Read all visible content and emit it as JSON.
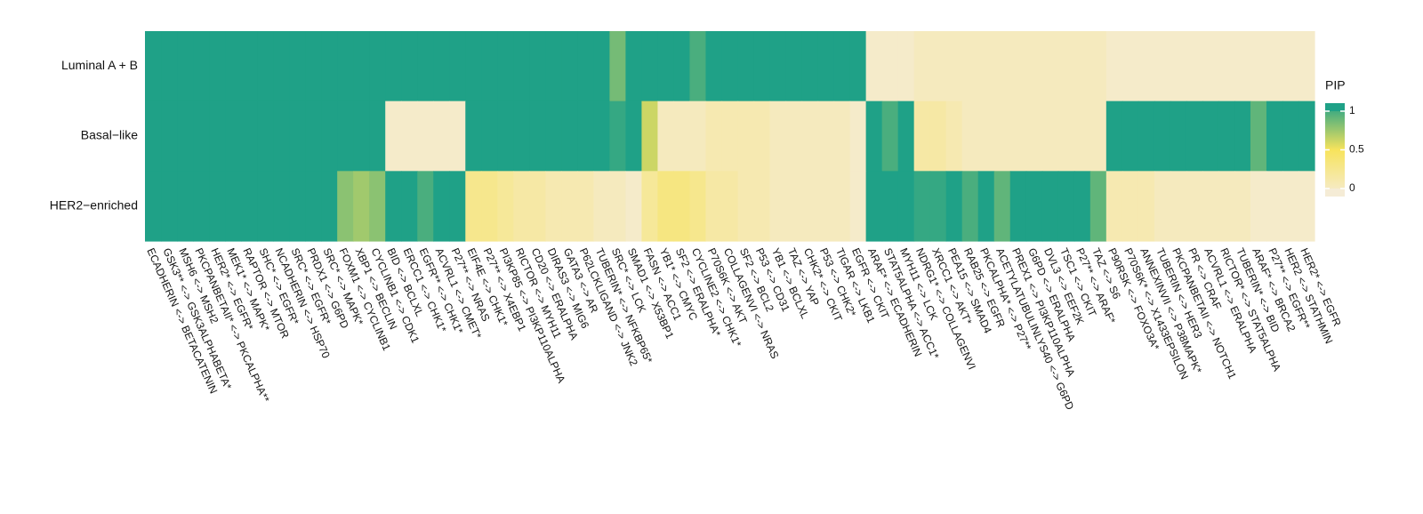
{
  "chart_data": {
    "type": "heatmap",
    "rows": [
      "Luminal A + B",
      "Basal−like",
      "HER2−enriched"
    ],
    "columns": [
      "ECADHERIN <-> BETACATENIN",
      "GSK3** <-> GSK3ALPHABETA*",
      "MSH6 <-> MSH2",
      "PKCPANBETAII* <-> PKCALPHA**",
      "HER2* <-> EGFR*",
      "MEK1* <-> MAPK*",
      "RAPTOR <-> MTOR",
      "SHC* <-> EGFR*",
      "NCADHERIN <-> HSP70",
      "SRC* <-> EGFR*",
      "PRDX1 <-> G6PD",
      "SRC* <-> MAPK*",
      "FOXM1 <-> CYCLINB1",
      "XBP1 <-> BECLIN",
      "CYCLINB1 <-> CDK1",
      "BID <-> BCLXL",
      "ERCC1 <-> CHK1*",
      "EGFR** <-> CHK1*",
      "ACVRL1 <-> CMET*",
      "P27** <-> NRAS",
      "EIF4E <-> CHK1*",
      "P27** <-> X4EBP1",
      "PI3KP85 <-> PI3KP110ALPHA",
      "RICTOR <-> MYH11",
      "CD20 <-> ERALPHA",
      "DIRAS3 <-> MIG6",
      "GATA3 <-> AR",
      "P62LCKLIGAND <-> JNK2",
      "TUBERIN* <-> NFKBP65*",
      "SRC* <-> LCK",
      "SMAD1 <-> X53BP1",
      "FASN <-> ACC1",
      "YB1* <-> CMYC",
      "SF2 <-> ERALPHA*",
      "CYCLINE2 <-> CHK1*",
      "P70S6K <-> AKT",
      "COLLAGENVI <-> NRAS",
      "SF2 <-> BCL2",
      "P53 <-> CD31",
      "YB1 <-> BCLXL",
      "TAZ <-> YAP",
      "CHK2* <-> CKIT",
      "P53 <-> CHK2*",
      "TIGAR <-> LKB1",
      "EGFR <-> CKIT",
      "ARAF* <-> ECADHERIN",
      "STAT5ALPHA <-> ACC1*",
      "MYH11 <-> LCK",
      "NDRG1* <-> COLLAGENVI",
      "XRCC1 <-> AKT*",
      "PEA15 <-> SMAD4",
      "RAB25 <-> EGFR",
      "PKCALPHA* <-> P27**",
      "ACETYLATUBULINLYS40 <-> G6PD",
      "PREX1 <-> PI3KP110ALPHA",
      "G6PD <-> ERALPHA",
      "DVL3 <-> EEF2K",
      "TSC1 <-> CKIT",
      "P27** <-> ARAF*",
      "TAZ <-> S6",
      "P90RSK <-> FOXO3A*",
      "P70S6K* <-> X1433EPSILON",
      "ANNEXINVII <-> P38MAPK*",
      "TUBERIN <-> HER3",
      "PKCPANBETAII <-> NOTCH1",
      "PR <-> CRAF",
      "ACVRL1 <-> ERALPHA",
      "RICTOR* <-> STAT5ALPHA",
      "TUBERIN* <-> BID",
      "ARAF* <-> BRCA2",
      "P27** <-> EGFR**",
      "HER2 <-> STATHMIN",
      "HER2* <-> EGFR"
    ],
    "values": [
      [
        1,
        1,
        1,
        1,
        1,
        1,
        1,
        1,
        1,
        1,
        1,
        1,
        1,
        1,
        1,
        1,
        1,
        1,
        1,
        1,
        1,
        1,
        1,
        1,
        1,
        1,
        1,
        1,
        1,
        0.8,
        1,
        1,
        1,
        1,
        0.9,
        1,
        1,
        1,
        1,
        1,
        1,
        1,
        1,
        1,
        1,
        0.05,
        0.05,
        0.05,
        0.1,
        0.1,
        0.1,
        0.1,
        0.1,
        0.1,
        0.1,
        0.1,
        0.1,
        0.1,
        0.1,
        0.1,
        0.05,
        0.05,
        0.05,
        0.05,
        0.05,
        0.05,
        0.05,
        0.05,
        0.05,
        0.05,
        0.05,
        0.05,
        0.05
      ],
      [
        1,
        1,
        1,
        1,
        1,
        1,
        1,
        1,
        1,
        1,
        1,
        1,
        1,
        1,
        1,
        0.05,
        0.05,
        0.05,
        0.05,
        0.05,
        1,
        1,
        1,
        1,
        1,
        1,
        1,
        1,
        1,
        0.95,
        1,
        0.6,
        0.1,
        0.1,
        0.1,
        0.15,
        0.15,
        0.15,
        0.15,
        0.1,
        0.1,
        0.1,
        0.1,
        0.1,
        0.05,
        1,
        0.9,
        1,
        0.2,
        0.2,
        0.15,
        0.1,
        0.1,
        0.1,
        0.1,
        0.1,
        0.1,
        0.1,
        0.1,
        0.1,
        1,
        1,
        1,
        1,
        1,
        1,
        1,
        1,
        1,
        0.85,
        1,
        1,
        1
      ],
      [
        1,
        1,
        1,
        1,
        1,
        1,
        1,
        1,
        1,
        1,
        1,
        1,
        0.75,
        0.7,
        0.75,
        1,
        1,
        0.9,
        1,
        1,
        0.3,
        0.3,
        0.25,
        0.2,
        0.2,
        0.15,
        0.15,
        0.15,
        0.1,
        0.1,
        0.05,
        0.25,
        0.35,
        0.35,
        0.3,
        0.2,
        0.2,
        0.15,
        0.15,
        0.1,
        0.1,
        0.1,
        0.1,
        0.1,
        0.05,
        1,
        1,
        1,
        0.95,
        0.95,
        1,
        0.9,
        1,
        0.85,
        1,
        1,
        1,
        1,
        1,
        0.85,
        0.15,
        0.15,
        0.15,
        0.1,
        0.1,
        0.1,
        0.1,
        0.1,
        0.1,
        0.05,
        0.05,
        0.05,
        0.05
      ]
    ],
    "colorbar": {
      "title": "PIP",
      "lim": [
        0,
        1
      ],
      "ticks": [
        0,
        0.5,
        1
      ],
      "colors": [
        "#f5ecd6",
        "#f7e35c",
        "#1fa187"
      ]
    }
  }
}
